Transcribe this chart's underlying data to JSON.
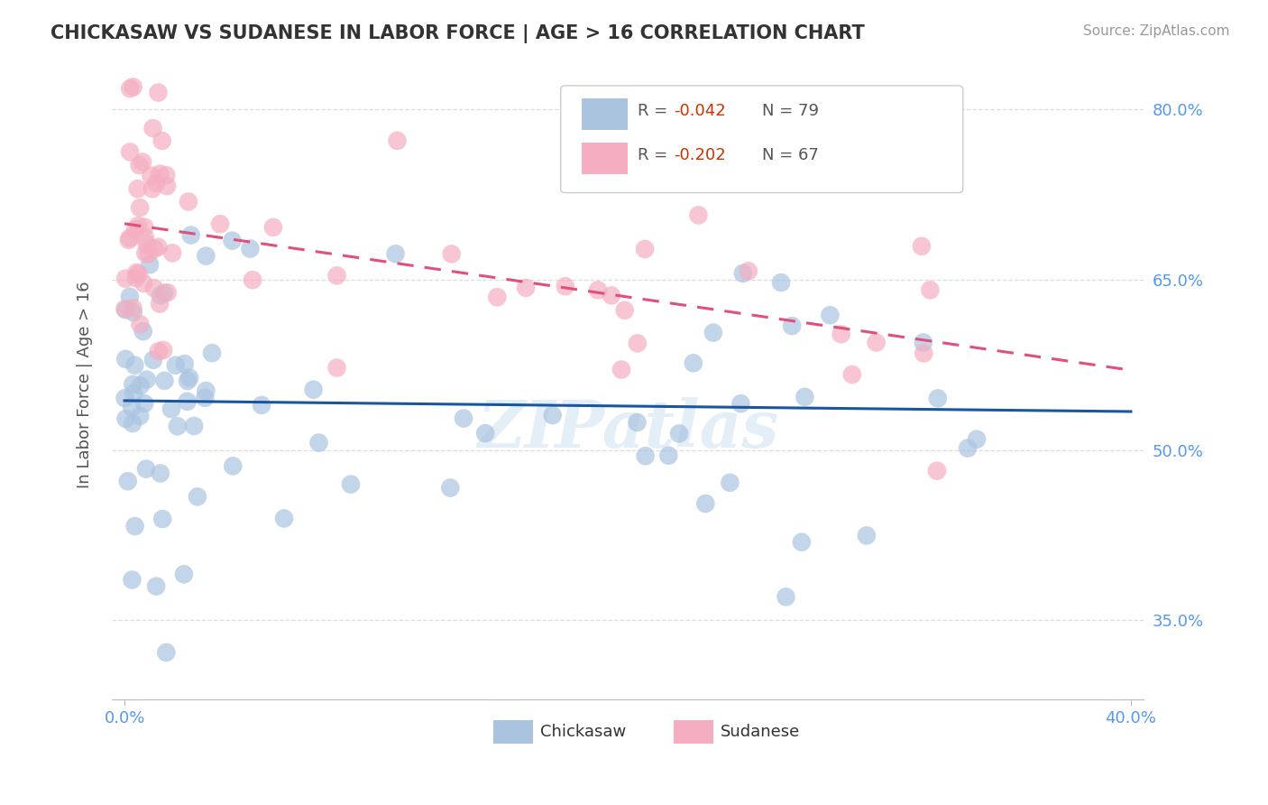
{
  "title": "CHICKASAW VS SUDANESE IN LABOR FORCE | AGE > 16 CORRELATION CHART",
  "source": "Source: ZipAtlas.com",
  "ylabel": "In Labor Force | Age > 16",
  "xlim": [
    -0.005,
    0.405
  ],
  "ylim": [
    0.28,
    0.835
  ],
  "xticks": [
    0.0,
    0.4
  ],
  "xticklabels": [
    "0.0%",
    "40.0%"
  ],
  "yticks": [
    0.35,
    0.5,
    0.65,
    0.8
  ],
  "yticklabels": [
    "35.0%",
    "50.0%",
    "65.0%",
    "80.0%"
  ],
  "chickasaw_color": "#aac4e0",
  "sudanese_color": "#f4aec0",
  "trendline_chickasaw_color": "#1a56a0",
  "trendline_sudanese_color": "#e0507a",
  "trendline_sudanese_dash": [
    6,
    4
  ],
  "watermark": "ZIPatlas",
  "chickasaw_R": -0.042,
  "chickasaw_N": 79,
  "sudanese_R": -0.202,
  "sudanese_N": 67,
  "grid_color": "#dddddd",
  "title_color": "#333333",
  "tick_color": "#5599ee",
  "legend_r_color": "#cc3300",
  "legend_text_color": "#555555",
  "bottom_legend_color": "#333333",
  "source_color": "#999999"
}
